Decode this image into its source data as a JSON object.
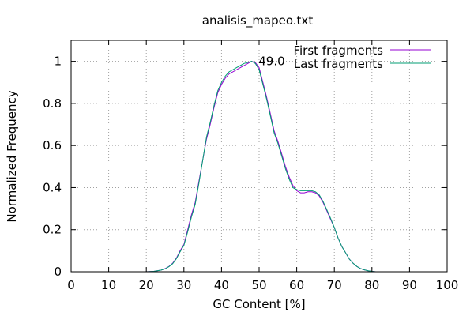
{
  "chart_data": {
    "type": "line",
    "title": "analisis_mapeo.txt",
    "xlabel": "GC Content [%]",
    "ylabel": "Normalized Frequency",
    "xlim": [
      0,
      100
    ],
    "ylim": [
      0,
      1.1
    ],
    "xticks": [
      "0",
      "10",
      "20",
      "30",
      "40",
      "50",
      "60",
      "70",
      "80",
      "90",
      "100"
    ],
    "yticks": [
      "0",
      "0.2",
      "0.4",
      "0.6",
      "0.8",
      "1"
    ],
    "grid": true,
    "legend_position": "top-right",
    "annotation": {
      "text": "49.0",
      "x": 49.0,
      "y": 1.0
    },
    "series": [
      {
        "name": "First fragments",
        "color": "#9400d3",
        "x": [
          20,
          22,
          24,
          25,
          26,
          27,
          28,
          29,
          30,
          31,
          32,
          33,
          34,
          35,
          36,
          37,
          38,
          39,
          40,
          41,
          42,
          43,
          44,
          45,
          46,
          47,
          48,
          49,
          50,
          51,
          52,
          53,
          54,
          55,
          56,
          57,
          58,
          59,
          60,
          61,
          62,
          63,
          64,
          65,
          66,
          67,
          68,
          69,
          70,
          71,
          72,
          73,
          74,
          75,
          76,
          77,
          78,
          79,
          80,
          81
        ],
        "values": [
          0,
          0.002,
          0.008,
          0.015,
          0.025,
          0.04,
          0.065,
          0.1,
          0.13,
          0.2,
          0.27,
          0.33,
          0.43,
          0.53,
          0.63,
          0.7,
          0.78,
          0.85,
          0.89,
          0.92,
          0.94,
          0.95,
          0.96,
          0.97,
          0.98,
          0.99,
          1.0,
          0.995,
          0.97,
          0.9,
          0.83,
          0.75,
          0.67,
          0.62,
          0.56,
          0.5,
          0.45,
          0.41,
          0.385,
          0.375,
          0.375,
          0.38,
          0.38,
          0.375,
          0.36,
          0.33,
          0.29,
          0.25,
          0.21,
          0.16,
          0.12,
          0.09,
          0.06,
          0.04,
          0.025,
          0.015,
          0.009,
          0.005,
          0.002,
          0
        ]
      },
      {
        "name": "Last fragments",
        "color": "#009e73",
        "x": [
          20,
          22,
          24,
          25,
          26,
          27,
          28,
          29,
          30,
          31,
          32,
          33,
          34,
          35,
          36,
          37,
          38,
          39,
          40,
          41,
          42,
          43,
          44,
          45,
          46,
          47,
          48,
          49,
          50,
          51,
          52,
          53,
          54,
          55,
          56,
          57,
          58,
          59,
          60,
          61,
          62,
          63,
          64,
          65,
          66,
          67,
          68,
          69,
          70,
          71,
          72,
          73,
          74,
          75,
          76,
          77,
          78,
          79,
          80,
          81
        ],
        "values": [
          0,
          0.002,
          0.008,
          0.014,
          0.024,
          0.038,
          0.062,
          0.095,
          0.125,
          0.19,
          0.26,
          0.32,
          0.42,
          0.53,
          0.64,
          0.71,
          0.79,
          0.86,
          0.9,
          0.93,
          0.95,
          0.96,
          0.97,
          0.98,
          0.99,
          0.995,
          1.0,
          0.99,
          0.96,
          0.89,
          0.82,
          0.74,
          0.66,
          0.61,
          0.55,
          0.49,
          0.44,
          0.4,
          0.39,
          0.385,
          0.385,
          0.385,
          0.385,
          0.38,
          0.365,
          0.335,
          0.295,
          0.255,
          0.21,
          0.16,
          0.12,
          0.09,
          0.06,
          0.04,
          0.025,
          0.015,
          0.009,
          0.005,
          0.002,
          0
        ]
      }
    ]
  }
}
